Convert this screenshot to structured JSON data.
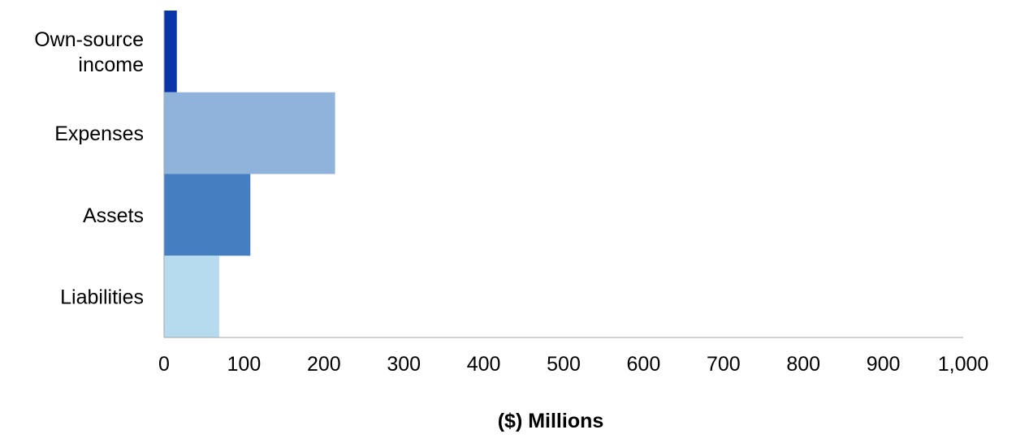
{
  "chart_data": {
    "type": "bar",
    "orientation": "horizontal",
    "categories": [
      [
        "Own-source",
        "income"
      ],
      [
        "Expenses"
      ],
      [
        "Assets"
      ],
      [
        "Liabilities"
      ]
    ],
    "values": [
      16,
      214,
      108,
      69
    ],
    "bar_colors": [
      "#0a35a8",
      "#8fb3db",
      "#457fc2",
      "#b6dbee"
    ],
    "xlabel": "($) Millions",
    "xlim": [
      0,
      1000
    ],
    "xticks": [
      0,
      100,
      200,
      300,
      400,
      500,
      600,
      700,
      800,
      900,
      1000
    ],
    "xtick_labels": [
      "0",
      "100",
      "200",
      "300",
      "400",
      "500",
      "600",
      "700",
      "800",
      "900",
      "1,000"
    ],
    "grid": false,
    "axis_color": "#a6a6a6"
  }
}
